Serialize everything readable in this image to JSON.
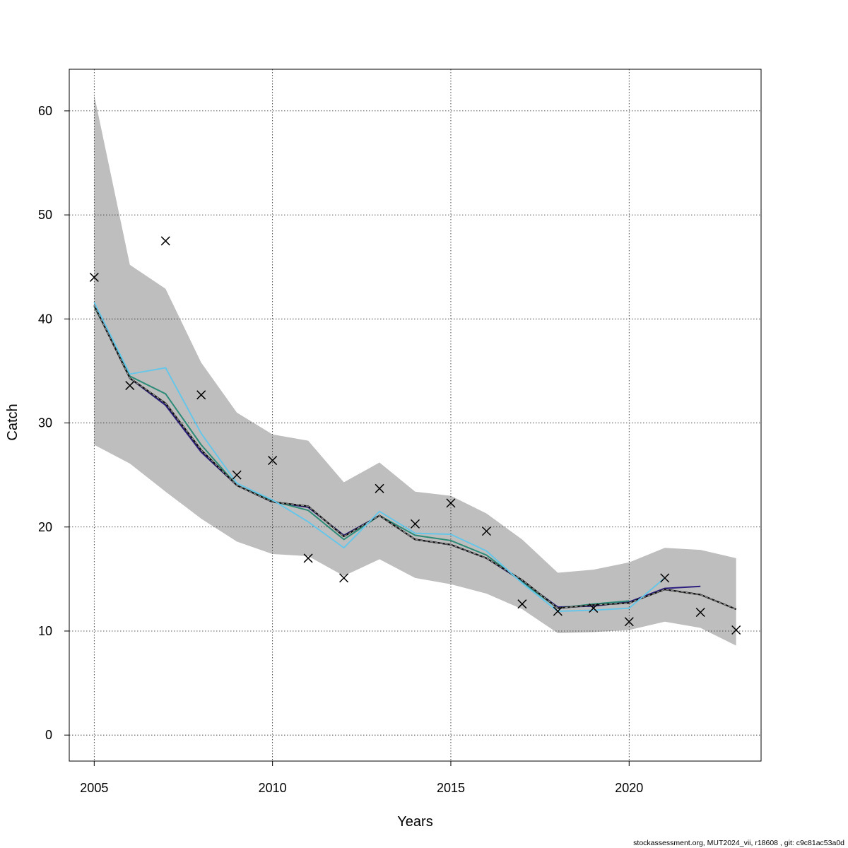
{
  "chart_data": {
    "type": "line",
    "title": "",
    "xlabel": "Years",
    "ylabel": "Catch",
    "xlim": [
      2004.3,
      2023.7
    ],
    "ylim": [
      -2.5,
      64
    ],
    "x_ticks": [
      2005,
      2010,
      2015,
      2020
    ],
    "y_ticks": [
      0,
      10,
      20,
      30,
      40,
      50,
      60
    ],
    "x_tick_labels": [
      "2005",
      "2010",
      "2015",
      "2020"
    ],
    "y_tick_labels": [
      "0",
      "10",
      "20",
      "30",
      "40",
      "50",
      "60"
    ],
    "grid": true,
    "years": [
      2005,
      2006,
      2007,
      2008,
      2009,
      2010,
      2011,
      2012,
      2013,
      2014,
      2015,
      2016,
      2017,
      2018,
      2019,
      2020,
      2021,
      2022,
      2023
    ],
    "confidence_band": {
      "color": "#bebebe",
      "upper": [
        61.5,
        45.2,
        42.9,
        35.8,
        31.0,
        28.9,
        28.3,
        24.3,
        26.2,
        23.4,
        23.0,
        21.3,
        18.8,
        15.6,
        15.9,
        16.6,
        18.0,
        17.8,
        17.0
      ],
      "lower": [
        27.9,
        26.1,
        23.4,
        20.8,
        18.6,
        17.4,
        17.2,
        15.3,
        16.9,
        15.1,
        14.5,
        13.6,
        12.1,
        9.8,
        9.9,
        10.1,
        10.9,
        10.3,
        8.6
      ]
    },
    "observed": {
      "marker": "cross",
      "values": [
        44.0,
        33.6,
        47.5,
        32.7,
        25.0,
        26.4,
        17.0,
        15.1,
        23.7,
        20.3,
        22.3,
        19.6,
        12.6,
        11.9,
        12.2,
        10.9,
        15.1,
        11.8,
        10.1
      ]
    },
    "series": [
      {
        "color": "#555555",
        "dashed": true,
        "values": [
          41.3,
          34.3,
          31.9,
          27.4,
          24.0,
          22.4,
          22.0,
          19.1,
          21.1,
          18.8,
          18.3,
          17.0,
          14.9,
          12.2,
          12.5,
          12.7,
          14.0,
          13.5,
          12.1
        ]
      },
      {
        "color": "#2c1f7f",
        "dashed": false,
        "values": [
          41.3,
          34.3,
          31.7,
          27.2,
          24.0,
          22.4,
          21.9,
          19.2,
          21.1,
          18.8,
          18.3,
          17.0,
          14.8,
          12.3,
          12.4,
          12.8,
          14.1,
          14.3,
          null
        ]
      },
      {
        "color": "#2e8b78",
        "dashed": false,
        "values": [
          41.2,
          34.5,
          32.8,
          27.9,
          24.0,
          22.5,
          21.6,
          18.8,
          21.1,
          19.2,
          18.7,
          17.3,
          14.7,
          12.2,
          12.6,
          12.9,
          null,
          null,
          null
        ]
      },
      {
        "color": "#67c6e8",
        "dashed": false,
        "values": [
          41.6,
          34.7,
          35.3,
          29.0,
          24.2,
          22.6,
          20.5,
          18.0,
          21.5,
          19.4,
          19.3,
          17.7,
          14.6,
          11.9,
          12.0,
          12.2,
          15.1,
          null,
          null
        ]
      }
    ]
  },
  "footer": "stockassessment.org, MUT2024_vii, r18608 , git: c9c81ac53a0d"
}
